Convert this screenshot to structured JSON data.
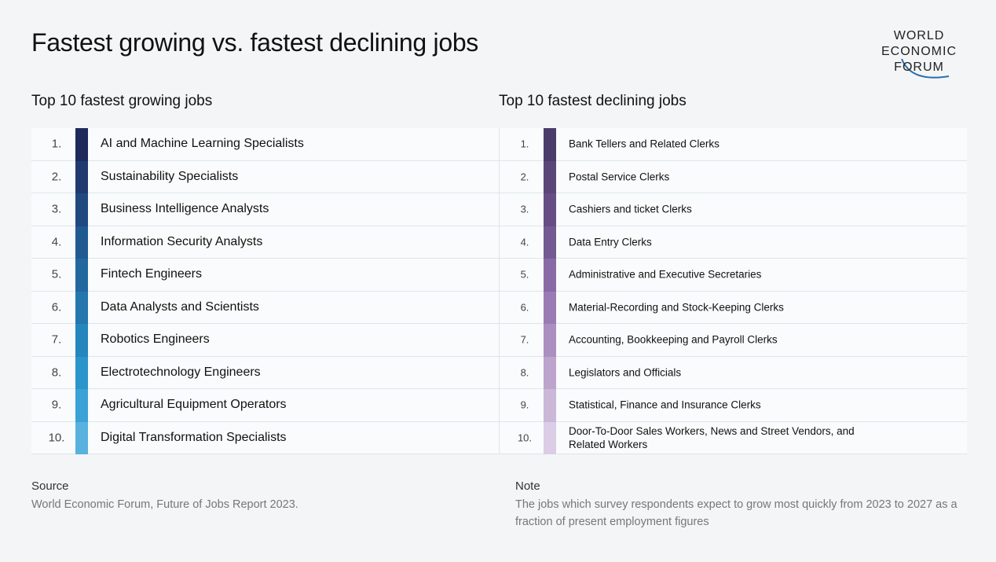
{
  "header": {
    "title": "Fastest growing vs. fastest declining jobs",
    "logo": [
      "WORLD",
      "ECONOMIC",
      "FORUM"
    ]
  },
  "growing": {
    "title": "Top 10 fastest growing jobs",
    "rows": [
      {
        "rank": "1.",
        "job": "AI and Machine Learning Specialists"
      },
      {
        "rank": "2.",
        "job": "Sustainability Specialists"
      },
      {
        "rank": "3.",
        "job": "Business Intelligence Analysts"
      },
      {
        "rank": "4.",
        "job": "Information Security Analysts"
      },
      {
        "rank": "5.",
        "job": "Fintech Engineers"
      },
      {
        "rank": "6.",
        "job": "Data Analysts and Scientists"
      },
      {
        "rank": "7.",
        "job": "Robotics Engineers"
      },
      {
        "rank": "8.",
        "job": "Electrotechnology Engineers"
      },
      {
        "rank": "9.",
        "job": "Agricultural Equipment Operators"
      },
      {
        "rank": "10.",
        "job": "Digital Transformation Specialists"
      }
    ]
  },
  "declining": {
    "title": "Top 10 fastest declining jobs",
    "rows": [
      {
        "rank": "1.",
        "job": "Bank Tellers and Related Clerks"
      },
      {
        "rank": "2.",
        "job": "Postal Service Clerks"
      },
      {
        "rank": "3.",
        "job": "Cashiers and ticket Clerks"
      },
      {
        "rank": "4.",
        "job": "Data Entry Clerks"
      },
      {
        "rank": "5.",
        "job": "Administrative and Executive Secretaries"
      },
      {
        "rank": "6.",
        "job": "Material-Recording and Stock-Keeping Clerks"
      },
      {
        "rank": "7.",
        "job": "Accounting, Bookkeeping and Payroll Clerks"
      },
      {
        "rank": "8.",
        "job": "Legislators and Officials"
      },
      {
        "rank": "9.",
        "job": "Statistical, Finance and Insurance Clerks"
      },
      {
        "rank": "10.",
        "job": "Door-To-Door Sales Workers, News and Street Vendors, and Related Workers"
      }
    ]
  },
  "source": {
    "label": "Source",
    "text": "World Economic Forum, Future of Jobs Report 2023."
  },
  "note": {
    "label": "Note",
    "text": "The jobs which survey respondents expect to grow most quickly from 2023 to 2027 as a fraction of present employment figures"
  }
}
